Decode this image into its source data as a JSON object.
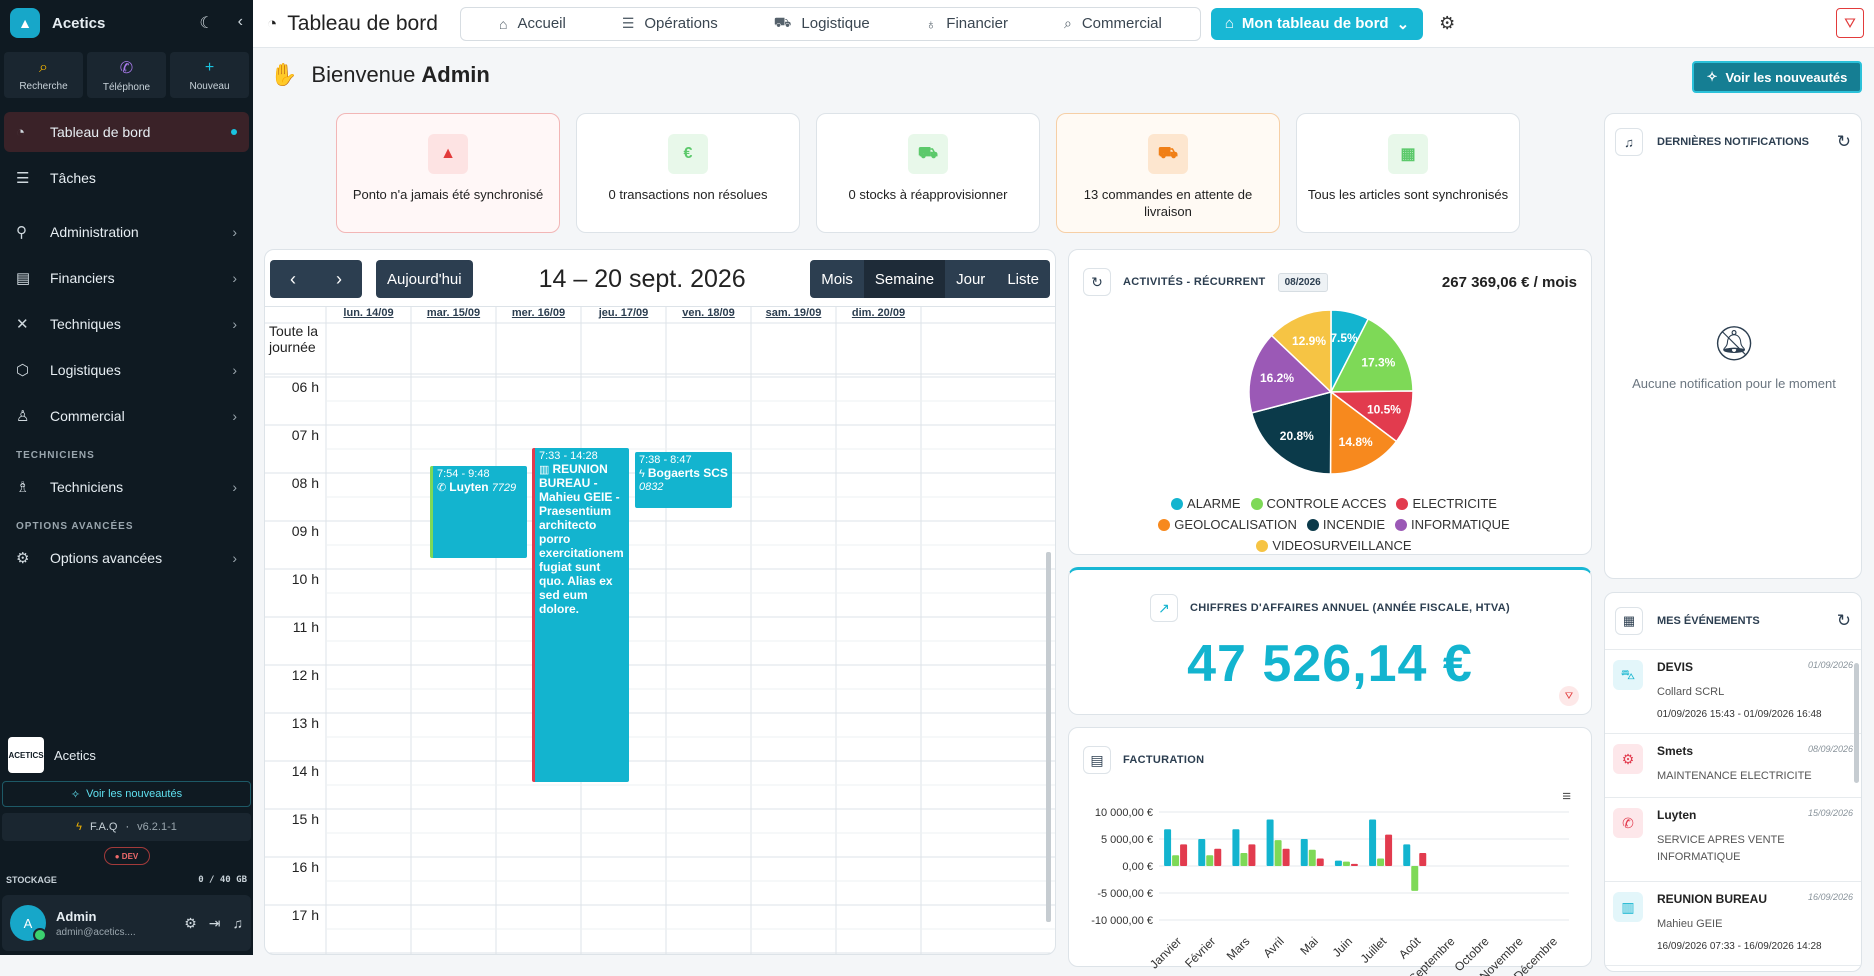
{
  "sidebar": {
    "brand": "Acetics",
    "quick": [
      {
        "label": "Recherche"
      },
      {
        "label": "Téléphone"
      },
      {
        "label": "Nouveau"
      }
    ],
    "items": [
      {
        "label": "Tableau de bord"
      },
      {
        "label": "Tâches"
      },
      {
        "label": "Administration"
      },
      {
        "label": "Financiers"
      },
      {
        "label": "Techniques"
      },
      {
        "label": "Logistiques"
      },
      {
        "label": "Commercial"
      }
    ],
    "section_tech": "TECHNICIENS",
    "tech_item": "Techniciens",
    "section_opts": "OPTIONS AVANCÉES",
    "opts_item": "Options avancées",
    "org_logo": "ACETICS",
    "org_name": "Acetics",
    "news": "Voir les nouveautés",
    "faq": "F.A.Q",
    "version": "v6.2.1-1",
    "env": "DEV",
    "storage_label": "STOCKAGE",
    "storage_value": "0 / 40 GB",
    "user_initial": "A",
    "user_name": "Admin",
    "user_email": "admin@acetics...."
  },
  "topbar": {
    "title": "Tableau de bord",
    "tabs": [
      {
        "label": "Accueil"
      },
      {
        "label": "Opérations"
      },
      {
        "label": "Logistique"
      },
      {
        "label": "Financier"
      },
      {
        "label": "Commercial"
      }
    ],
    "mine": "Mon tableau de bord"
  },
  "welcome": {
    "prefix": "Bienvenue",
    "name": "Admin"
  },
  "news_button": "Voir les nouveautés",
  "alerts": [
    {
      "text": "Ponto n'a jamais été synchronisé"
    },
    {
      "text": "0 transactions non résolues"
    },
    {
      "text": "0 stocks à réapprovisionner"
    },
    {
      "text": "13 commandes en attente de livraison"
    },
    {
      "text": "Tous les articles sont synchronisés"
    }
  ],
  "calendar": {
    "today": "Aujourd'hui",
    "range": "14 – 20 sept. 2026",
    "views": [
      "Mois",
      "Semaine",
      "Jour",
      "Liste"
    ],
    "active_view": "Semaine",
    "days": [
      "lun. 14/09",
      "mar. 15/09",
      "mer. 16/09",
      "jeu. 17/09",
      "ven. 18/09",
      "sam. 19/09",
      "dim. 20/09"
    ],
    "allday": "Toute la journée",
    "hours": [
      "06 h",
      "07 h",
      "08 h",
      "09 h",
      "10 h",
      "11 h",
      "12 h",
      "13 h",
      "14 h",
      "15 h",
      "16 h",
      "17 h"
    ],
    "events": [
      {
        "time": "7:54 - 9:48",
        "title": "Luyten",
        "code": "7729"
      },
      {
        "time": "7:33 - 14:28",
        "title": "REUNION BUREAU - Mahieu GEIE - Praesentium architecto porro exercitationem fugiat sunt quo. Alias ex sed eum dolore."
      },
      {
        "time": "7:38 - 8:47",
        "title": "Bogaerts SCS",
        "code": "0832"
      }
    ]
  },
  "activities": {
    "title": "ACTIVITÉS - RÉCURRENT",
    "badge": "08/2026",
    "total": "267 369,06 € / mois"
  },
  "chart_data": [
    {
      "type": "pie",
      "categories": [
        "ALARME",
        "CONTROLE ACCES",
        "ELECTRICITE",
        "GEOLOCALISATION",
        "INCENDIE",
        "INFORMATIQUE",
        "VIDEOSURVEILLANCE"
      ],
      "values": [
        7.5,
        17.3,
        10.5,
        14.8,
        20.8,
        16.2,
        12.9
      ],
      "colors": [
        "#13b4cf",
        "#7ed957",
        "#e23b4e",
        "#f7891e",
        "#0b3a4a",
        "#9b59b6",
        "#f6c444"
      ]
    },
    {
      "type": "bar",
      "categories": [
        "Janvier",
        "Février",
        "Mars",
        "Avril",
        "Mai",
        "Juin",
        "Juillet",
        "Août",
        "Septembre",
        "Octobre",
        "Novembre",
        "Décembre"
      ],
      "series": [
        {
          "values": [
            6800,
            5000,
            6800,
            8600,
            5000,
            1000,
            8600,
            4000,
            0,
            0,
            0,
            0
          ],
          "color": "#13b4cf"
        },
        {
          "values": [
            2000,
            2000,
            2400,
            4800,
            3000,
            800,
            1400,
            -4600,
            0,
            0,
            0,
            0
          ],
          "color": "#7ed957"
        },
        {
          "values": [
            4000,
            3200,
            4000,
            3200,
            1400,
            400,
            5800,
            2400,
            0,
            0,
            0,
            0
          ],
          "color": "#e23b4e"
        }
      ],
      "yticks": [
        "10 000,00 €",
        "5 000,00 €",
        "0,00 €",
        "-5 000,00 €",
        "-10 000,00 €"
      ],
      "ylim": [
        -10000,
        10000
      ]
    }
  ],
  "revenue": {
    "title": "CHIFFRES D'AFFAIRES ANNUEL (ANNÉE FISCALE, HTVA)",
    "value": "47 526,14 €"
  },
  "billing": {
    "title": "FACTURATION"
  },
  "notifications": {
    "title": "DERNIÈRES NOTIFICATIONS",
    "empty": "Aucune notification pour le moment"
  },
  "my_events": {
    "title": "MES ÉVÉNEMENTS",
    "items": [
      {
        "title": "DEVIS",
        "date": "01/09/2026",
        "sub": "Collard SCRL",
        "when": "01/09/2026 15:43 - 01/09/2026 16:48"
      },
      {
        "title": "Smets",
        "date": "08/09/2026",
        "sub": "MAINTENANCE ELECTRICITE"
      },
      {
        "title": "Luyten",
        "date": "15/09/2026",
        "sub": "SERVICE APRES VENTE INFORMATIQUE"
      },
      {
        "title": "REUNION BUREAU",
        "date": "16/09/2026",
        "sub": "Mahieu GEIE",
        "when": "16/09/2026 07:33 - 16/09/2026 14:28"
      }
    ]
  }
}
